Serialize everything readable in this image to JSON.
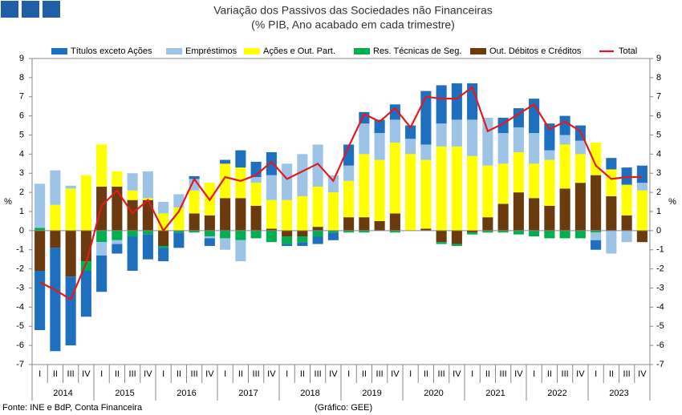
{
  "chart_data": {
    "type": "bar",
    "title": "Variação dos Passivos das Sociedades não Financeiras",
    "subtitle": "(% PIB, Ano acabado em cada trimestre)",
    "y_label": "%",
    "source": "Fonte: INE e BdP, Conta Financeira",
    "credit": "(Gráfico: GEE)",
    "categories": [
      "I",
      "II",
      "III",
      "IV",
      "I",
      "II",
      "III",
      "IV",
      "I",
      "II",
      "III",
      "IV",
      "I",
      "II",
      "III",
      "IV",
      "I",
      "II",
      "III",
      "IV",
      "I",
      "II",
      "III",
      "IV",
      "I",
      "II",
      "III",
      "IV",
      "I",
      "II",
      "III",
      "IV",
      "I",
      "II",
      "III",
      "IV",
      "I",
      "II",
      "III",
      "IV"
    ],
    "year_labels": [
      "2014",
      "2015",
      "2016",
      "2017",
      "2018",
      "2019",
      "2020",
      "2021",
      "2022",
      "2023"
    ],
    "ylim": [
      -7,
      9
    ],
    "yticks": [
      -7,
      -6,
      -5,
      -4,
      -3,
      -2,
      -1,
      0,
      1,
      2,
      3,
      4,
      5,
      6,
      7,
      8,
      9
    ],
    "series": [
      {
        "name": "Títulos exceto Ações",
        "color": "#1f6fbf",
        "values": [
          -3.1,
          -5.4,
          -3.6,
          -2.4,
          -1.9,
          -0.5,
          -1.8,
          -1.3,
          -0.7,
          -0.8,
          0.15,
          -0.4,
          0.2,
          0.9,
          0.8,
          1.2,
          -0.1,
          -0.2,
          -0.4,
          -0.4,
          1.1,
          0.6,
          0.7,
          0.8,
          0.7,
          2.8,
          2.0,
          1.9,
          1.9,
          0,
          0.8,
          1.0,
          1.8,
          1.4,
          1.0,
          0.8,
          -0.5,
          0.6,
          0.9,
          0.9
        ]
      },
      {
        "name": "Empréstimos",
        "color": "#9dc3e6",
        "values": [
          2.3,
          1.8,
          0.15,
          0,
          -0.7,
          -0.2,
          0.9,
          1.4,
          0.6,
          0.7,
          0.6,
          -0.1,
          -0.6,
          -1.1,
          0.3,
          1.3,
          1.9,
          2.2,
          2.2,
          0.9,
          0.8,
          1.6,
          1.4,
          1.2,
          0.8,
          0.8,
          1.2,
          1.4,
          1.9,
          2.5,
          1.6,
          1.3,
          1.6,
          0.5,
          0.5,
          0.7,
          -0.4,
          -1.2,
          -0.6,
          0.4
        ]
      },
      {
        "name": "Ações e Out. Part.",
        "color": "#ffff00",
        "values": [
          0,
          1.35,
          2.2,
          2.9,
          2.2,
          0.8,
          0.5,
          0.1,
          0.9,
          1.2,
          1.2,
          1.7,
          1.8,
          1.6,
          1.2,
          1.5,
          1.6,
          1.8,
          2.1,
          2.0,
          1.9,
          3.3,
          3.2,
          3.7,
          4.0,
          3.6,
          4.4,
          4.4,
          3.9,
          2.7,
          2.1,
          2.1,
          1.8,
          2.4,
          2.3,
          1.5,
          1.7,
          1.4,
          1.6,
          2.1
        ]
      },
      {
        "name": "Res. Técnicas de Seg.",
        "color": "#00b050",
        "values": [
          0.15,
          0,
          0,
          -0.5,
          -0.6,
          -0.5,
          -0.3,
          -0.2,
          -0.1,
          -0.1,
          -0.1,
          -0.3,
          -0.4,
          -0.5,
          -0.4,
          -0.6,
          -0.4,
          -0.3,
          -0.3,
          -0.1,
          -0.1,
          -0.1,
          0,
          -0.1,
          0,
          0,
          -0.1,
          -0.1,
          -0.1,
          -0.1,
          -0.1,
          -0.2,
          -0.3,
          -0.4,
          -0.4,
          -0.4,
          -0.1,
          0,
          0,
          0
        ]
      },
      {
        "name": "Out. Débitos e Créditos",
        "color": "#6b3a0f",
        "values": [
          -2.1,
          -0.9,
          -2.4,
          -1.6,
          2.3,
          2.3,
          1.6,
          1.6,
          -0.8,
          0,
          0.9,
          0.8,
          1.7,
          1.7,
          1.3,
          0.1,
          -0.3,
          -0.3,
          0.2,
          0,
          0.7,
          0.7,
          0.5,
          0.9,
          0,
          0.1,
          -0.6,
          -0.7,
          -0.1,
          0.7,
          1.4,
          2.0,
          1.7,
          1.3,
          2.2,
          2.5,
          2.9,
          1.8,
          0.8,
          -0.6
        ]
      },
      {
        "name": "Total",
        "color": "#e31a1c",
        "type": "line",
        "values": [
          -2.7,
          -3.1,
          -3.6,
          -1.7,
          1.3,
          2.1,
          0.9,
          1.6,
          0.0,
          1.0,
          2.7,
          1.6,
          2.8,
          2.6,
          2.9,
          3.6,
          2.7,
          3.1,
          3.5,
          2.6,
          4.4,
          6.1,
          5.7,
          6.4,
          5.4,
          7.0,
          6.9,
          6.9,
          7.5,
          5.2,
          5.6,
          6.1,
          6.6,
          5.3,
          5.7,
          5.2,
          3.4,
          2.7,
          2.8,
          2.8
        ]
      }
    ]
  }
}
